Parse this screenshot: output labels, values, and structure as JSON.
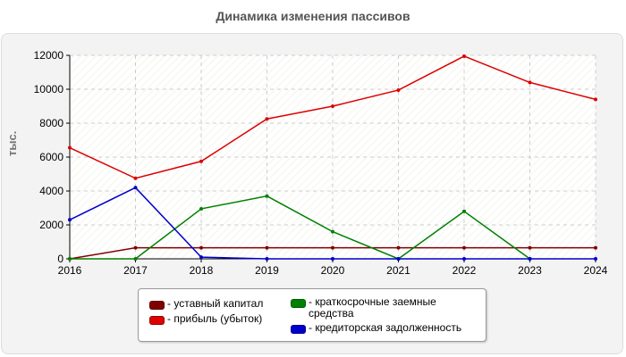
{
  "chart_data": {
    "type": "line",
    "title": "Динамика изменения пассивов",
    "ylabel": "тыс.",
    "x": [
      2016,
      2017,
      2018,
      2019,
      2020,
      2021,
      2022,
      2023,
      2024
    ],
    "ylim": [
      0,
      12000
    ],
    "yticks": [
      0,
      2000,
      4000,
      6000,
      8000,
      10000,
      12000
    ],
    "grid": true,
    "legend_position": "bottom",
    "series": [
      {
        "name": "уставный капитал",
        "color": "#800000",
        "values": [
          0,
          650,
          650,
          650,
          650,
          650,
          650,
          650,
          650
        ]
      },
      {
        "name": "прибыль (убыток)",
        "color": "#dd0000",
        "values": [
          6550,
          4750,
          5750,
          8250,
          9000,
          9950,
          11950,
          10400,
          9400
        ]
      },
      {
        "name": "краткосрочные заемные средства",
        "color": "#008000",
        "values": [
          0,
          0,
          2950,
          3700,
          1600,
          0,
          2800,
          0,
          null
        ]
      },
      {
        "name": "кредиторская задолженность",
        "color": "#0000cc",
        "values": [
          2300,
          4200,
          100,
          0,
          0,
          0,
          0,
          0,
          0
        ]
      }
    ]
  }
}
